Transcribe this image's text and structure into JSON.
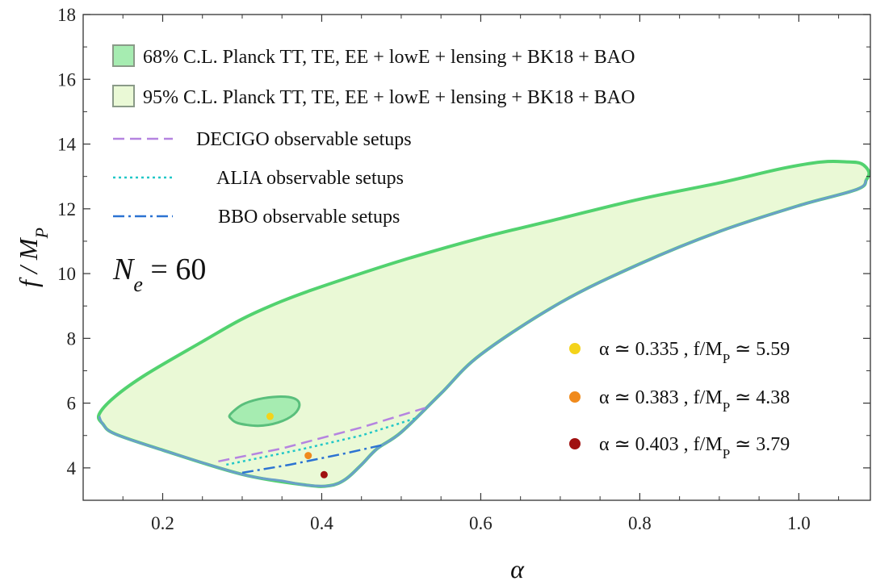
{
  "chart_data": {
    "type": "region",
    "xlabel": "α",
    "ylabel": "f / M_P",
    "xlim": [
      0.1,
      1.09
    ],
    "ylim": [
      3.0,
      18.0
    ],
    "x_ticks": [
      0.2,
      0.4,
      0.6,
      0.8,
      1.0
    ],
    "x_tick_labels": [
      "0.2",
      "0.4",
      "0.6",
      "0.8",
      "1.0"
    ],
    "y_ticks": [
      4,
      6,
      8,
      10,
      12,
      14,
      16,
      18
    ],
    "y_tick_labels": [
      "4",
      "6",
      "8",
      "10",
      "12",
      "14",
      "16",
      "18"
    ],
    "annotation": {
      "text": "N",
      "sub": "e",
      "rest": " = 60"
    },
    "colors": {
      "ring68_fill": "#a6ecb1",
      "ring68_edge": "#5abf7c",
      "ring95_fill": "#eaf9d6",
      "ring95_edge": "#52d26f",
      "decigo": "#b584e0",
      "alia": "#22c7c7",
      "bbo": "#2c73d2",
      "pt1": "#f4d31a",
      "pt2": "#f08a1c",
      "pt3": "#a01010"
    },
    "legend": [
      {
        "kind": "box68",
        "label": "68% C.L. Planck TT, TE, EE + lowE + lensing + BK18 + BAO"
      },
      {
        "kind": "box95",
        "label": "95% C.L. Planck TT, TE, EE + lowE + lensing + BK18 + BAO"
      },
      {
        "kind": "decigo",
        "label": "DECIGO observable setups"
      },
      {
        "kind": "alia",
        "label": "ALIA observable setups"
      },
      {
        "kind": "bbo",
        "label": "BBO observable setups"
      }
    ],
    "points_legend": [
      {
        "color_key": "pt1",
        "label": "α ≃ 0.335 , f/M",
        "sub": "P",
        "tail": " ≃ 5.59"
      },
      {
        "color_key": "pt2",
        "label": "α ≃ 0.383 , f/M",
        "sub": "P",
        "tail": " ≃ 4.38"
      },
      {
        "color_key": "pt3",
        "label": "α ≃ 0.403 , f/M",
        "sub": "P",
        "tail": " ≃ 3.79"
      }
    ],
    "points": [
      {
        "x": 0.335,
        "y": 5.59,
        "color_key": "pt1"
      },
      {
        "x": 0.383,
        "y": 4.38,
        "color_key": "pt2"
      },
      {
        "x": 0.403,
        "y": 3.79,
        "color_key": "pt3"
      }
    ],
    "region95": [
      [
        0.12,
        5.65
      ],
      [
        0.14,
        6.2
      ],
      [
        0.18,
        6.9
      ],
      [
        0.25,
        7.9
      ],
      [
        0.3,
        8.6
      ],
      [
        0.35,
        9.15
      ],
      [
        0.4,
        9.6
      ],
      [
        0.5,
        10.4
      ],
      [
        0.6,
        11.1
      ],
      [
        0.7,
        11.7
      ],
      [
        0.8,
        12.3
      ],
      [
        0.9,
        12.8
      ],
      [
        0.98,
        13.25
      ],
      [
        1.03,
        13.45
      ],
      [
        1.06,
        13.45
      ],
      [
        1.078,
        13.4
      ],
      [
        1.088,
        13.15
      ],
      [
        1.085,
        12.9
      ],
      [
        1.073,
        12.6
      ],
      [
        1.0,
        12.1
      ],
      [
        0.9,
        11.3
      ],
      [
        0.8,
        10.3
      ],
      [
        0.7,
        9.1
      ],
      [
        0.6,
        7.5
      ],
      [
        0.55,
        6.3
      ],
      [
        0.5,
        5.1
      ],
      [
        0.47,
        4.6
      ],
      [
        0.45,
        4.1
      ],
      [
        0.43,
        3.65
      ],
      [
        0.41,
        3.45
      ],
      [
        0.38,
        3.47
      ],
      [
        0.3,
        3.8
      ],
      [
        0.2,
        4.55
      ],
      [
        0.14,
        5.05
      ],
      [
        0.125,
        5.35
      ]
    ],
    "region68": [
      [
        0.285,
        5.65
      ],
      [
        0.3,
        5.95
      ],
      [
        0.32,
        6.12
      ],
      [
        0.345,
        6.2
      ],
      [
        0.365,
        6.15
      ],
      [
        0.372,
        5.95
      ],
      [
        0.365,
        5.65
      ],
      [
        0.345,
        5.4
      ],
      [
        0.32,
        5.3
      ],
      [
        0.295,
        5.38
      ],
      [
        0.286,
        5.52
      ]
    ],
    "decigo": [
      [
        0.27,
        4.2
      ],
      [
        0.35,
        4.6
      ],
      [
        0.45,
        5.25
      ],
      [
        0.53,
        5.85
      ]
    ],
    "alia": [
      [
        0.28,
        4.1
      ],
      [
        0.37,
        4.55
      ],
      [
        0.45,
        5.0
      ],
      [
        0.52,
        5.55
      ]
    ],
    "bbo": [
      [
        0.3,
        3.85
      ],
      [
        0.36,
        4.1
      ],
      [
        0.43,
        4.45
      ],
      [
        0.475,
        4.7
      ]
    ],
    "lower_edge": [
      [
        0.12,
        5.6
      ],
      [
        0.125,
        5.35
      ],
      [
        0.14,
        5.05
      ],
      [
        0.2,
        4.55
      ],
      [
        0.3,
        3.8
      ],
      [
        0.35,
        3.6
      ],
      [
        0.38,
        3.47
      ],
      [
        0.41,
        3.45
      ],
      [
        0.43,
        3.65
      ],
      [
        0.45,
        4.1
      ],
      [
        0.47,
        4.6
      ],
      [
        0.5,
        5.1
      ],
      [
        0.55,
        6.3
      ],
      [
        0.6,
        7.5
      ],
      [
        0.7,
        9.1
      ],
      [
        0.8,
        10.3
      ],
      [
        0.9,
        11.3
      ],
      [
        1.0,
        12.1
      ],
      [
        1.073,
        12.6
      ],
      [
        1.085,
        12.9
      ]
    ]
  }
}
